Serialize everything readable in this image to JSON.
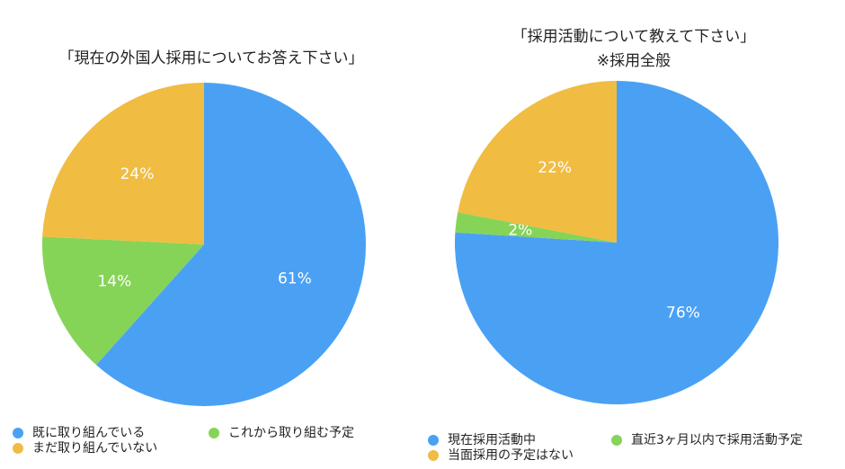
{
  "colors": {
    "blue": "#4AA1F4",
    "green": "#86D457",
    "yellow": "#F0BC42",
    "label_text": "#ffffff"
  },
  "chart_data": [
    {
      "type": "pie",
      "title": "「現在の外国人採用についてお答え下さい」",
      "subtitle": "",
      "start_angle_deg": 0,
      "direction": "clockwise",
      "categories": [
        "既に取り組んでいる",
        "これから取り組む予定",
        "まだ取り組んでいない"
      ],
      "values": [
        61,
        14,
        24
      ],
      "labels": [
        "61%",
        "14%",
        "24%"
      ],
      "colors": [
        "#4AA1F4",
        "#86D457",
        "#F0BC42"
      ],
      "legend_position": "bottom"
    },
    {
      "type": "pie",
      "title": "「採用活動について教えて下さい」",
      "subtitle": "※採用全般",
      "start_angle_deg": 0,
      "direction": "clockwise",
      "categories": [
        "現在採用活動中",
        "直近3ヶ月以内で採用活動予定",
        "当面採用の予定はない"
      ],
      "values": [
        76,
        2,
        22
      ],
      "labels": [
        "76%",
        "2%",
        "22%"
      ],
      "colors": [
        "#4AA1F4",
        "#86D457",
        "#F0BC42"
      ],
      "legend_position": "bottom"
    }
  ]
}
